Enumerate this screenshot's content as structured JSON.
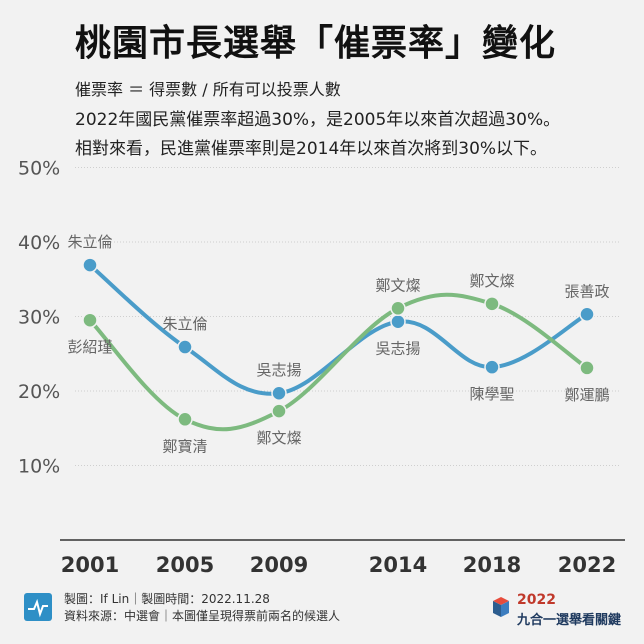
{
  "title": "桃園市長選舉「催票率」變化",
  "description": [
    "催票率 ＝ 得票數 / 所有可以投票人數",
    "2022年國民黨催票率超過30%，是2005年以來首次超過30%。",
    "相對來看，民進黨催票率則是2014年以來首次將到30%以下。"
  ],
  "chart_data": {
    "type": "line",
    "categories": [
      "2001",
      "2005",
      "2009",
      "2014",
      "2018",
      "2022"
    ],
    "ylim": [
      0,
      50
    ],
    "yticks": [
      "10%",
      "20%",
      "30%",
      "40%",
      "50%"
    ],
    "ytick_values": [
      10,
      20,
      30,
      40,
      50
    ],
    "grid": true,
    "series": [
      {
        "color": "#4a9cc9",
        "values": [
          36.9,
          25.9,
          19.7,
          29.3,
          23.2,
          30.3
        ],
        "labels": [
          "朱立倫",
          "朱立倫",
          "吳志揚",
          "吳志揚",
          "陳學聖",
          "張善政"
        ],
        "label_pos": [
          "above",
          "above",
          "above",
          "below",
          "below",
          "above"
        ]
      },
      {
        "color": "#7dba7f",
        "values": [
          29.5,
          16.2,
          17.3,
          31.1,
          31.7,
          23.1
        ],
        "labels": [
          "彭紹瑾",
          "鄭寶清",
          "鄭文燦",
          "鄭文燦",
          "鄭文燦",
          "鄭運鵬"
        ],
        "label_pos": [
          "below",
          "below",
          "below",
          "above",
          "above",
          "below"
        ]
      }
    ]
  },
  "footer": {
    "line1": "製圖：If Lin｜製圖時間：2022.11.28",
    "line2": "資料來源：中選會｜本圖僅呈現得票前兩名的候選人",
    "brand_year": "2022",
    "brand_name": "九合一選舉看關鍵"
  },
  "colors": {
    "blue": "#4a9cc9",
    "green": "#7dba7f",
    "grid": "#cfcfcf",
    "axis": "#555555"
  }
}
